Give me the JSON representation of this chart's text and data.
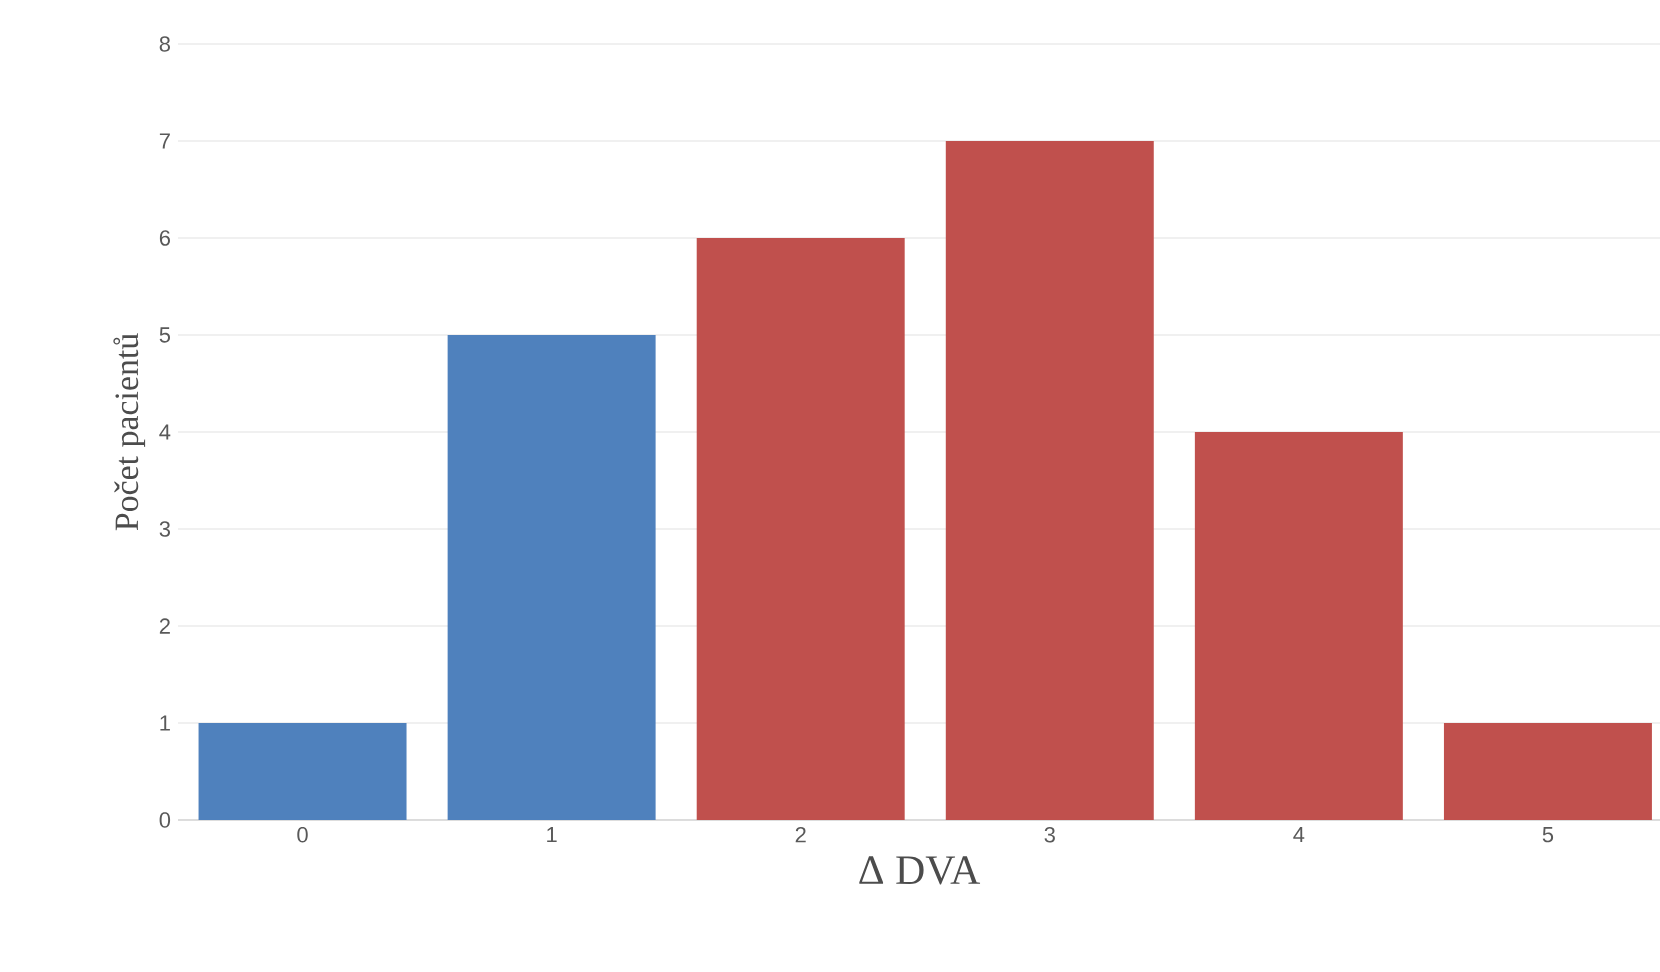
{
  "chart_data": {
    "type": "bar",
    "categories": [
      "0",
      "1",
      "2",
      "3",
      "4",
      "5"
    ],
    "values": [
      1,
      5,
      6,
      7,
      4,
      1
    ],
    "colors": [
      "#4f81bd",
      "#4f81bd",
      "#c0504d",
      "#c0504d",
      "#c0504d",
      "#c0504d"
    ],
    "ylim": [
      0,
      8
    ],
    "yticks": [
      0,
      1,
      2,
      3,
      4,
      5,
      6,
      7,
      8
    ],
    "grid": "y",
    "xlabel": "Δ DVA",
    "ylabel": "Počet pacientů"
  }
}
